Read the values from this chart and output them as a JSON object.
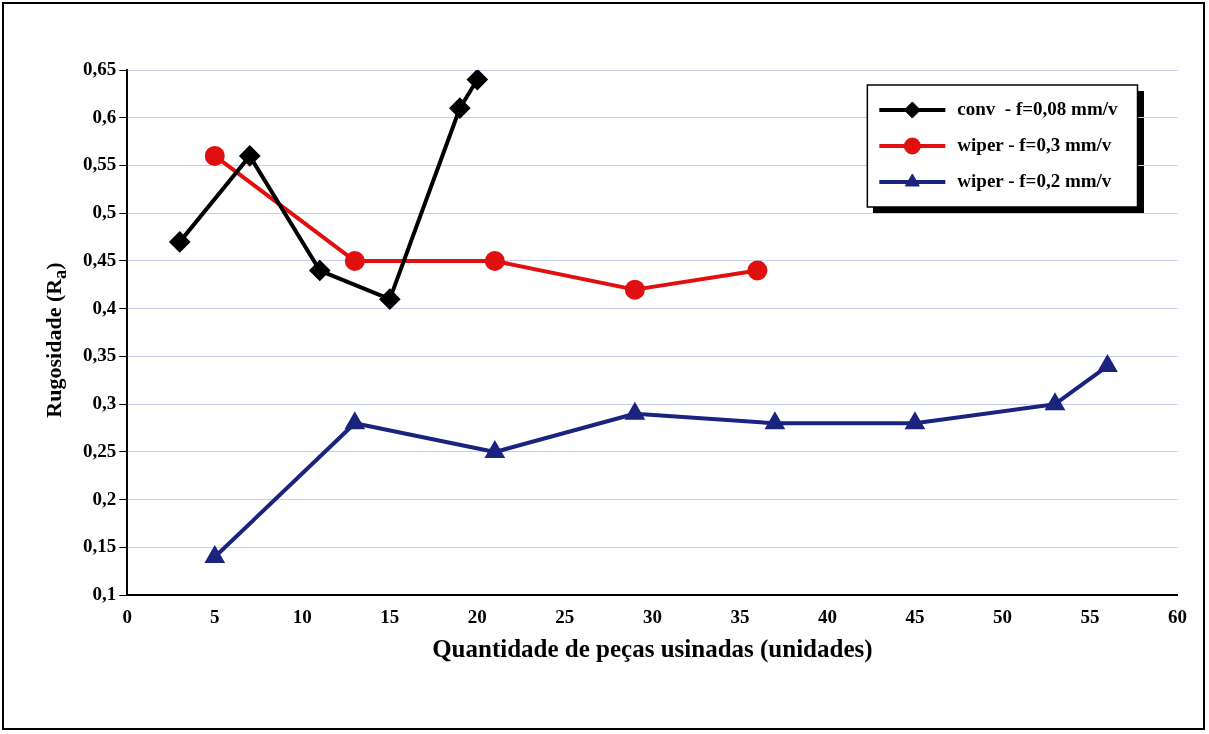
{
  "chart_data": {
    "type": "line",
    "xlabel": "Quantidade de peças usinadas (unidades)",
    "ylabel": "Rugosidade (R$_{a}$)",
    "xlim": [
      0,
      60
    ],
    "xticks": [
      0,
      5,
      10,
      15,
      20,
      25,
      30,
      35,
      40,
      45,
      50,
      55,
      60
    ],
    "ylim": [
      0.1,
      0.65
    ],
    "yticks": [
      {
        "value": 0.1,
        "label": "0,1"
      },
      {
        "value": 0.15,
        "label": "0,15"
      },
      {
        "value": 0.2,
        "label": "0,2"
      },
      {
        "value": 0.25,
        "label": "0,25"
      },
      {
        "value": 0.3,
        "label": "0,3"
      },
      {
        "value": 0.35,
        "label": "0,35"
      },
      {
        "value": 0.4,
        "label": "0,4"
      },
      {
        "value": 0.45,
        "label": "0,45"
      },
      {
        "value": 0.5,
        "label": "0,5"
      },
      {
        "value": 0.55,
        "label": "0,55"
      },
      {
        "value": 0.6,
        "label": "0,6"
      },
      {
        "value": 0.65,
        "label": "0,65"
      }
    ],
    "grid": "y",
    "legend": "top right",
    "line_style": "solid",
    "series": [
      {
        "name": "conv  - f=0,08 mm/v",
        "color": "#000000",
        "marker": "diamond",
        "x": [
          3,
          7,
          11,
          15,
          19,
          20
        ],
        "values": [
          0.47,
          0.56,
          0.44,
          0.41,
          0.61,
          0.64
        ]
      },
      {
        "name": "wiper - f=0,3 mm/v",
        "color": "#e01010",
        "marker": "circle",
        "x": [
          5,
          13,
          21,
          29,
          36
        ],
        "values": [
          0.56,
          0.45,
          0.45,
          0.42,
          0.44
        ]
      },
      {
        "name": "wiper - f=0,2 mm/v",
        "color": "#1a237e",
        "marker": "triangle",
        "x": [
          5,
          13,
          21,
          29,
          37,
          45,
          53,
          56
        ],
        "values": [
          0.14,
          0.28,
          0.25,
          0.29,
          0.28,
          0.28,
          0.3,
          0.34
        ]
      }
    ]
  }
}
